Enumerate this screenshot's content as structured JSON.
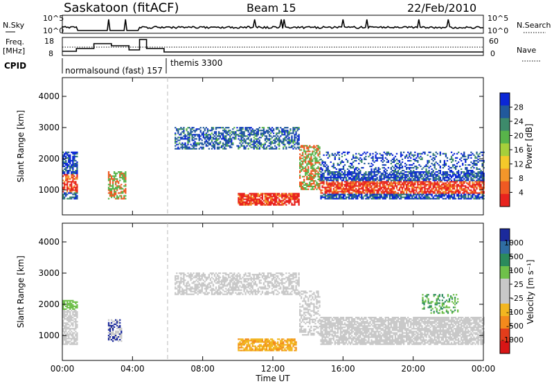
{
  "header": {
    "station": "Saskatoon (fitACF)",
    "beam": "Beam 15",
    "date": "22/Feb/2010"
  },
  "top_panel": {
    "left_label": "N.Sky",
    "right_label": "N.Search",
    "left_ticks": [
      "10^5",
      "10^0"
    ],
    "right_ticks": [
      "10^5",
      "10^0"
    ]
  },
  "freq_panel": {
    "left_label_1": "Freq.",
    "left_label_2": "[MHz]",
    "right_label": "Nave",
    "left_ticks": [
      "18",
      "8"
    ],
    "right_ticks": [
      "60",
      "0"
    ]
  },
  "cpid": {
    "label": "CPID",
    "entries": [
      "normalsound (fast) 157",
      "themis 3300"
    ]
  },
  "chart_data": [
    {
      "type": "heatmap",
      "title": "Power",
      "ylabel": "Slant Range [km]",
      "yticks": [
        "1000",
        "2000",
        "3000",
        "4000"
      ],
      "ylim": [
        200,
        4600
      ],
      "colorbar_label": "Power [dB]",
      "colorbar_ticks": [
        "28",
        "24",
        "20",
        "16",
        "12",
        "8",
        "4"
      ],
      "colorbar_colors": [
        "#0b27d6",
        "#21599c",
        "#3d8a6b",
        "#58b44a",
        "#a6cf3b",
        "#f4c92a",
        "#f3962a",
        "#ef5a23",
        "#e8231e"
      ]
    },
    {
      "type": "heatmap",
      "title": "Velocity",
      "ylabel": "Slant Range [km]",
      "yticks": [
        "1000",
        "2000",
        "3000",
        "4000"
      ],
      "ylim": [
        200,
        4600
      ],
      "colorbar_label": "Velocity [m s⁻¹]",
      "colorbar_ticks": [
        "1000",
        "500",
        "100",
        "25",
        "-25",
        "-100",
        "-500",
        "-1000"
      ],
      "colorbar_colors": [
        "#1b2a9c",
        "#2f6da3",
        "#2b8a5c",
        "#6fc04a",
        "#c8c8c8",
        "#c8c8c8",
        "#f2b620",
        "#f38a1c",
        "#e23d1b",
        "#d81515"
      ]
    }
  ],
  "x_axis": {
    "label": "Time UT",
    "ticks": [
      "00:00",
      "04:00",
      "08:00",
      "12:00",
      "16:00",
      "20:00",
      "00:00"
    ]
  }
}
